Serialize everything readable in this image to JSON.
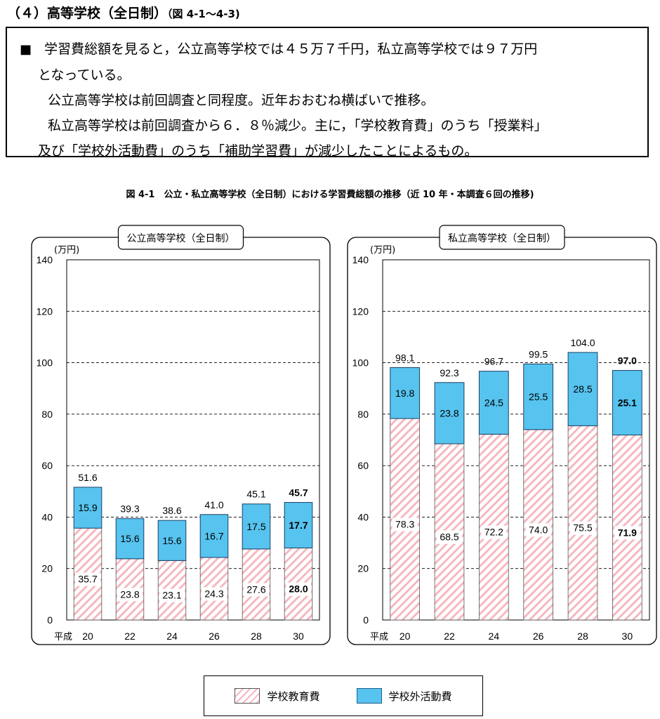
{
  "header": {
    "title": "（４）高等学校（全日制）",
    "ref": "（図 4-1～4-3)"
  },
  "summary": {
    "line1": "学習費総額を見ると，公立高等学校では４５万７千円，私立高等学校では９７万円",
    "line2": "となっている。",
    "line3": "公立高等学校は前回調査と同程度。近年おおむね横ばいで推移。",
    "line4": "私立高等学校は前回調査から６．８％減少。主に，「学校教育費」のうち「授業料」",
    "line5": "及び「学校外活動費」のうち「補助学習費」が減少したことによるもの。"
  },
  "figure_title": "図 4-1　公立・私立高等学校（全日制）における学習費総額の推移（近 10 年・本調査６回の推移)",
  "legend": {
    "school": "学校教育費",
    "outside": "学校外活動費"
  },
  "colors": {
    "outside_fill": "#57c3ef",
    "school_stripe": "#f6b8c0"
  },
  "chart_data": [
    {
      "type": "bar",
      "stacked": true,
      "title": "公立高等学校（全日制）",
      "ylabel": "(万円)",
      "xprefix": "平成",
      "ylim": [
        0,
        140
      ],
      "yticks": [
        0,
        20,
        40,
        60,
        80,
        100,
        120,
        140
      ],
      "grid": true,
      "categories": [
        "20",
        "22",
        "24",
        "26",
        "28",
        "30"
      ],
      "series": [
        {
          "name": "学校教育費",
          "values": [
            35.7,
            23.8,
            23.1,
            24.3,
            27.6,
            28.0
          ]
        },
        {
          "name": "学校外活動費",
          "values": [
            15.9,
            15.6,
            15.6,
            16.7,
            17.5,
            17.7
          ]
        }
      ],
      "totals": [
        51.6,
        39.3,
        38.6,
        41.0,
        45.1,
        45.7
      ],
      "labels": {
        "school": [
          "35.7",
          "23.8",
          "23.1",
          "24.3",
          "27.6",
          "28.0"
        ],
        "outside": [
          "15.9",
          "15.6",
          "15.6",
          "16.7",
          "17.5",
          "17.7"
        ],
        "totals": [
          "51.6",
          "39.3",
          "38.6",
          "41.0",
          "45.1",
          "45.7"
        ]
      }
    },
    {
      "type": "bar",
      "stacked": true,
      "title": "私立高等学校（全日制）",
      "ylabel": "(万円)",
      "xprefix": "平成",
      "ylim": [
        0,
        140
      ],
      "yticks": [
        0,
        20,
        40,
        60,
        80,
        100,
        120,
        140
      ],
      "grid": true,
      "categories": [
        "20",
        "22",
        "24",
        "26",
        "28",
        "30"
      ],
      "series": [
        {
          "name": "学校教育費",
          "values": [
            78.3,
            68.5,
            72.2,
            74.0,
            75.5,
            71.9
          ]
        },
        {
          "name": "学校外活動費",
          "values": [
            19.8,
            23.8,
            24.5,
            25.5,
            28.5,
            25.1
          ]
        }
      ],
      "totals": [
        98.1,
        92.3,
        96.7,
        99.5,
        104.0,
        97.0
      ],
      "labels": {
        "school": [
          "78.3",
          "68.5",
          "72.2",
          "74.0",
          "75.5",
          "71.9"
        ],
        "outside": [
          "19.8",
          "23.8",
          "24.5",
          "25.5",
          "28.5",
          "25.1"
        ],
        "totals": [
          "98.1",
          "92.3",
          "96.7",
          "99.5",
          "104.0",
          "97.0"
        ]
      }
    }
  ]
}
